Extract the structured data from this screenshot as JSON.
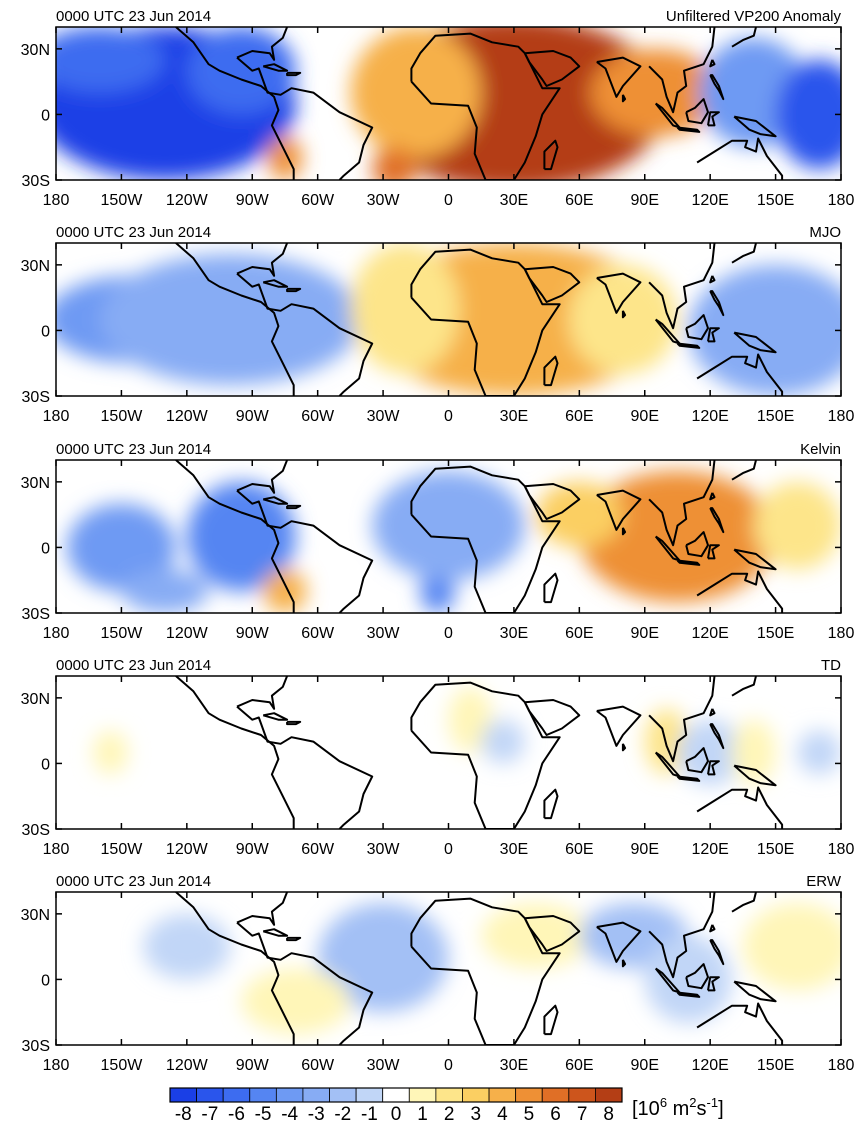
{
  "panels": [
    {
      "left_title": "0000 UTC 23 Jun 2014",
      "right_title": "Unfiltered VP200 Anomaly"
    },
    {
      "left_title": "0000 UTC 23 Jun 2014",
      "right_title": "MJO"
    },
    {
      "left_title": "0000 UTC 23 Jun 2014",
      "right_title": "Kelvin"
    },
    {
      "left_title": "0000 UTC 23 Jun 2014",
      "right_title": "TD"
    },
    {
      "left_title": "0000 UTC 23 Jun 2014",
      "right_title": "ERW"
    }
  ],
  "lat_ticks": [
    "30N",
    "0",
    "30S"
  ],
  "lon_ticks": [
    "180",
    "150W",
    "120W",
    "90W",
    "60W",
    "30W",
    "0",
    "30E",
    "60E",
    "90E",
    "120E",
    "150E",
    "180"
  ],
  "colorbar": {
    "labels": [
      "-8",
      "-7",
      "-6",
      "-5",
      "-4",
      "-3",
      "-2",
      "-1",
      "0",
      "1",
      "2",
      "3",
      "4",
      "5",
      "6",
      "7",
      "8"
    ],
    "units_prefix": "[10",
    "units_exp1": "6",
    "units_mid": " m",
    "units_exp2": "2",
    "units_s": "s",
    "units_exp3": "-1",
    "units_suffix": "]",
    "colors": [
      "#1a3fe6",
      "#2a55ec",
      "#3d6cf0",
      "#5585f2",
      "#6e9af3",
      "#87acf4",
      "#a3c0f5",
      "#c1d6f7",
      "#ffffff",
      "#fff6b8",
      "#fde58a",
      "#fbcf62",
      "#f6b04a",
      "#ee9035",
      "#e06f26",
      "#cd551c",
      "#b43e15"
    ]
  },
  "map_data": {
    "projection": "cylindrical-equidistant",
    "lon_range": [
      -180,
      180
    ],
    "lat_range": [
      -30,
      40
    ],
    "panels": [
      {
        "name": "Unfiltered VP200 Anomaly",
        "features": [
          {
            "lon": -130,
            "lat": 5,
            "value": -8,
            "rx": 60,
            "ry": 35
          },
          {
            "lon": -160,
            "lat": 25,
            "value": -6,
            "rx": 30,
            "ry": 15
          },
          {
            "lon": -95,
            "lat": 20,
            "value": -6,
            "rx": 25,
            "ry": 20
          },
          {
            "lon": -75,
            "lat": -20,
            "value": 5,
            "rx": 8,
            "ry": 10
          },
          {
            "lon": 30,
            "lat": 5,
            "value": 8,
            "rx": 70,
            "ry": 40
          },
          {
            "lon": -15,
            "lat": 10,
            "value": 4,
            "rx": 30,
            "ry": 30
          },
          {
            "lon": -25,
            "lat": -25,
            "value": 6,
            "rx": 10,
            "ry": 10
          },
          {
            "lon": 95,
            "lat": 10,
            "value": 5,
            "rx": 30,
            "ry": 20
          },
          {
            "lon": 140,
            "lat": 10,
            "value": -4,
            "rx": 25,
            "ry": 25
          },
          {
            "lon": 170,
            "lat": 0,
            "value": -7,
            "rx": 20,
            "ry": 25
          }
        ]
      },
      {
        "name": "MJO",
        "features": [
          {
            "lon": -145,
            "lat": 5,
            "value": -4,
            "rx": 40,
            "ry": 20
          },
          {
            "lon": -100,
            "lat": 5,
            "value": -3,
            "rx": 60,
            "ry": 30
          },
          {
            "lon": 30,
            "lat": 5,
            "value": 4,
            "rx": 70,
            "ry": 35
          },
          {
            "lon": -20,
            "lat": 10,
            "value": 2,
            "rx": 25,
            "ry": 30
          },
          {
            "lon": 80,
            "lat": 5,
            "value": 2,
            "rx": 25,
            "ry": 25
          },
          {
            "lon": 150,
            "lat": 0,
            "value": -3,
            "rx": 40,
            "ry": 30
          }
        ]
      },
      {
        "name": "Kelvin",
        "features": [
          {
            "lon": -150,
            "lat": 0,
            "value": -4,
            "rx": 25,
            "ry": 20
          },
          {
            "lon": -95,
            "lat": 5,
            "value": -5,
            "rx": 25,
            "ry": 25
          },
          {
            "lon": -75,
            "lat": -20,
            "value": 4,
            "rx": 10,
            "ry": 10
          },
          {
            "lon": -130,
            "lat": -20,
            "value": -3,
            "rx": 20,
            "ry": 10
          },
          {
            "lon": -5,
            "lat": -20,
            "value": -5,
            "rx": 8,
            "ry": 10
          },
          {
            "lon": 0,
            "lat": 10,
            "value": -3,
            "rx": 35,
            "ry": 25
          },
          {
            "lon": 105,
            "lat": 5,
            "value": 5,
            "rx": 45,
            "ry": 30
          },
          {
            "lon": 60,
            "lat": 15,
            "value": 3,
            "rx": 20,
            "ry": 15
          },
          {
            "lon": 160,
            "lat": 10,
            "value": 2,
            "rx": 20,
            "ry": 20
          }
        ]
      },
      {
        "name": "TD",
        "features": [
          {
            "lon": -155,
            "lat": 5,
            "value": 1,
            "rx": 8,
            "ry": 10
          },
          {
            "lon": 10,
            "lat": 20,
            "value": 1,
            "rx": 10,
            "ry": 15
          },
          {
            "lon": 25,
            "lat": 10,
            "value": -1,
            "rx": 10,
            "ry": 10
          },
          {
            "lon": 100,
            "lat": 10,
            "value": 2,
            "rx": 10,
            "ry": 15
          },
          {
            "lon": 120,
            "lat": 5,
            "value": -1,
            "rx": 15,
            "ry": 15
          },
          {
            "lon": 140,
            "lat": 5,
            "value": 1,
            "rx": 10,
            "ry": 15
          },
          {
            "lon": 170,
            "lat": 5,
            "value": -1,
            "rx": 10,
            "ry": 10
          }
        ]
      },
      {
        "name": "ERW",
        "features": [
          {
            "lon": -30,
            "lat": 10,
            "value": -2,
            "rx": 30,
            "ry": 25
          },
          {
            "lon": -120,
            "lat": 15,
            "value": -1,
            "rx": 20,
            "ry": 15
          },
          {
            "lon": -70,
            "lat": -10,
            "value": 1,
            "rx": 25,
            "ry": 15
          },
          {
            "lon": 40,
            "lat": 20,
            "value": 1,
            "rx": 25,
            "ry": 15
          },
          {
            "lon": 85,
            "lat": 20,
            "value": -2,
            "rx": 25,
            "ry": 15
          },
          {
            "lon": 110,
            "lat": 0,
            "value": -1,
            "rx": 20,
            "ry": 20
          },
          {
            "lon": 160,
            "lat": 15,
            "value": 1,
            "rx": 25,
            "ry": 20
          }
        ]
      }
    ]
  }
}
